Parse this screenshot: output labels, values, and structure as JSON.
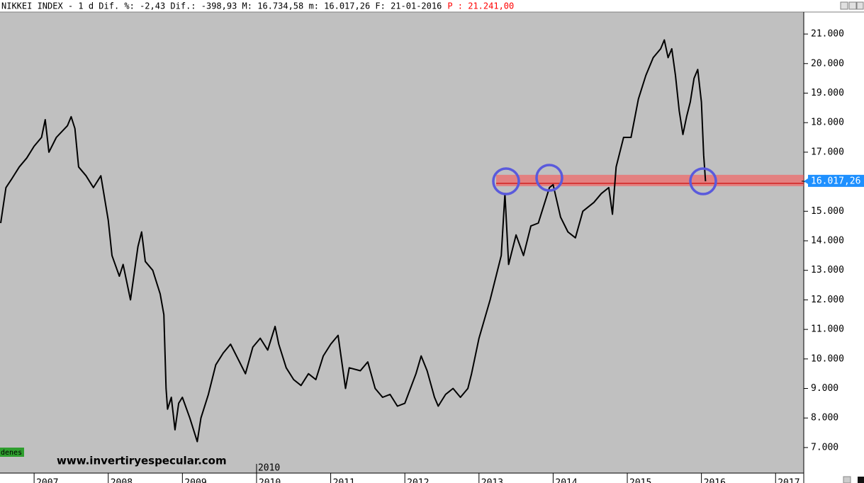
{
  "chart_data": {
    "type": "line",
    "title": "NIKKEI INDEX -  1 d Dif. %: -2,43 Dif.: -398,93 M: 16.734,58 m: 16.017,26 F: 21-01-2016",
    "price_label": "P : 21.241,00",
    "watermark": "www.invertiryespecular.com",
    "side_tag": "denes",
    "cursor_label": "2010",
    "current_price": {
      "value": 16017.26,
      "label": "16.017,26"
    },
    "color": "#000000",
    "xlim": [
      2006.54,
      2017.38
    ],
    "xticks": [
      2007,
      2008,
      2009,
      2010,
      2011,
      2012,
      2013,
      2014,
      2015,
      2016,
      2017
    ],
    "ylim": [
      6135,
      21745
    ],
    "yticks": [
      {
        "value": 7000,
        "label": "7.000"
      },
      {
        "value": 8000,
        "label": "8.000"
      },
      {
        "value": 9000,
        "label": "9.000"
      },
      {
        "value": 10000,
        "label": "10.000"
      },
      {
        "value": 11000,
        "label": "11.000"
      },
      {
        "value": 12000,
        "label": "12.000"
      },
      {
        "value": 13000,
        "label": "13.000"
      },
      {
        "value": 14000,
        "label": "14.000"
      },
      {
        "value": 15000,
        "label": "15.000"
      },
      {
        "value": 16000,
        "label": "16.000"
      },
      {
        "value": 17000,
        "label": "17.000"
      },
      {
        "value": 18000,
        "label": "18.000"
      },
      {
        "value": 19000,
        "label": "19.000"
      },
      {
        "value": 20000,
        "label": "20.000"
      },
      {
        "value": 21000,
        "label": "21.000"
      }
    ],
    "x": [
      2006.55,
      2006.62,
      2006.7,
      2006.8,
      2006.9,
      2007.0,
      2007.1,
      2007.15,
      2007.2,
      2007.3,
      2007.45,
      2007.5,
      2007.55,
      2007.6,
      2007.7,
      2007.8,
      2007.9,
      2008.0,
      2008.05,
      2008.15,
      2008.2,
      2008.3,
      2008.4,
      2008.45,
      2008.5,
      2008.6,
      2008.7,
      2008.75,
      2008.78,
      2008.8,
      2008.85,
      2008.9,
      2008.95,
      2009.0,
      2009.1,
      2009.2,
      2009.25,
      2009.35,
      2009.45,
      2009.55,
      2009.65,
      2009.75,
      2009.85,
      2009.95,
      2010.05,
      2010.15,
      2010.25,
      2010.3,
      2010.4,
      2010.5,
      2010.6,
      2010.7,
      2010.8,
      2010.9,
      2011.0,
      2011.1,
      2011.2,
      2011.25,
      2011.4,
      2011.5,
      2011.6,
      2011.7,
      2011.8,
      2011.9,
      2012.0,
      2012.15,
      2012.22,
      2012.3,
      2012.4,
      2012.45,
      2012.55,
      2012.65,
      2012.75,
      2012.85,
      2012.9,
      2013.0,
      2013.15,
      2013.3,
      2013.35,
      2013.4,
      2013.5,
      2013.6,
      2013.7,
      2013.8,
      2013.95,
      2014.0,
      2014.1,
      2014.2,
      2014.3,
      2014.4,
      2014.55,
      2014.65,
      2014.75,
      2014.8,
      2014.85,
      2014.95,
      2015.05,
      2015.15,
      2015.25,
      2015.35,
      2015.45,
      2015.5,
      2015.55,
      2015.6,
      2015.65,
      2015.7,
      2015.75,
      2015.8,
      2015.85,
      2015.9,
      2015.95,
      2016.0,
      2016.03,
      2016.055
    ],
    "values": [
      14600,
      15800,
      16100,
      16500,
      16800,
      17200,
      17500,
      18100,
      17000,
      17500,
      17900,
      18200,
      17800,
      16500,
      16200,
      15800,
      16200,
      14700,
      13500,
      12800,
      13200,
      12000,
      13800,
      14300,
      13300,
      13000,
      12200,
      11500,
      9000,
      8300,
      8700,
      7600,
      8500,
      8700,
      8000,
      7200,
      8000,
      8800,
      9800,
      10200,
      10500,
      10000,
      9500,
      10400,
      10700,
      10300,
      11100,
      10500,
      9700,
      9300,
      9100,
      9500,
      9300,
      10100,
      10500,
      10800,
      9000,
      9700,
      9600,
      9900,
      9000,
      8700,
      8800,
      8400,
      8500,
      9500,
      10100,
      9600,
      8700,
      8400,
      8800,
      9000,
      8700,
      9000,
      9500,
      10700,
      12000,
      13500,
      15600,
      13200,
      14200,
      13500,
      14500,
      14600,
      15800,
      15900,
      14800,
      14300,
      14100,
      15000,
      15300,
      15600,
      15800,
      14900,
      16500,
      17500,
      17500,
      18800,
      19600,
      20200,
      20500,
      20800,
      20200,
      20500,
      19600,
      18400,
      17600,
      18200,
      18700,
      19500,
      19800,
      18700,
      16900,
      16017.26
    ]
  }
}
